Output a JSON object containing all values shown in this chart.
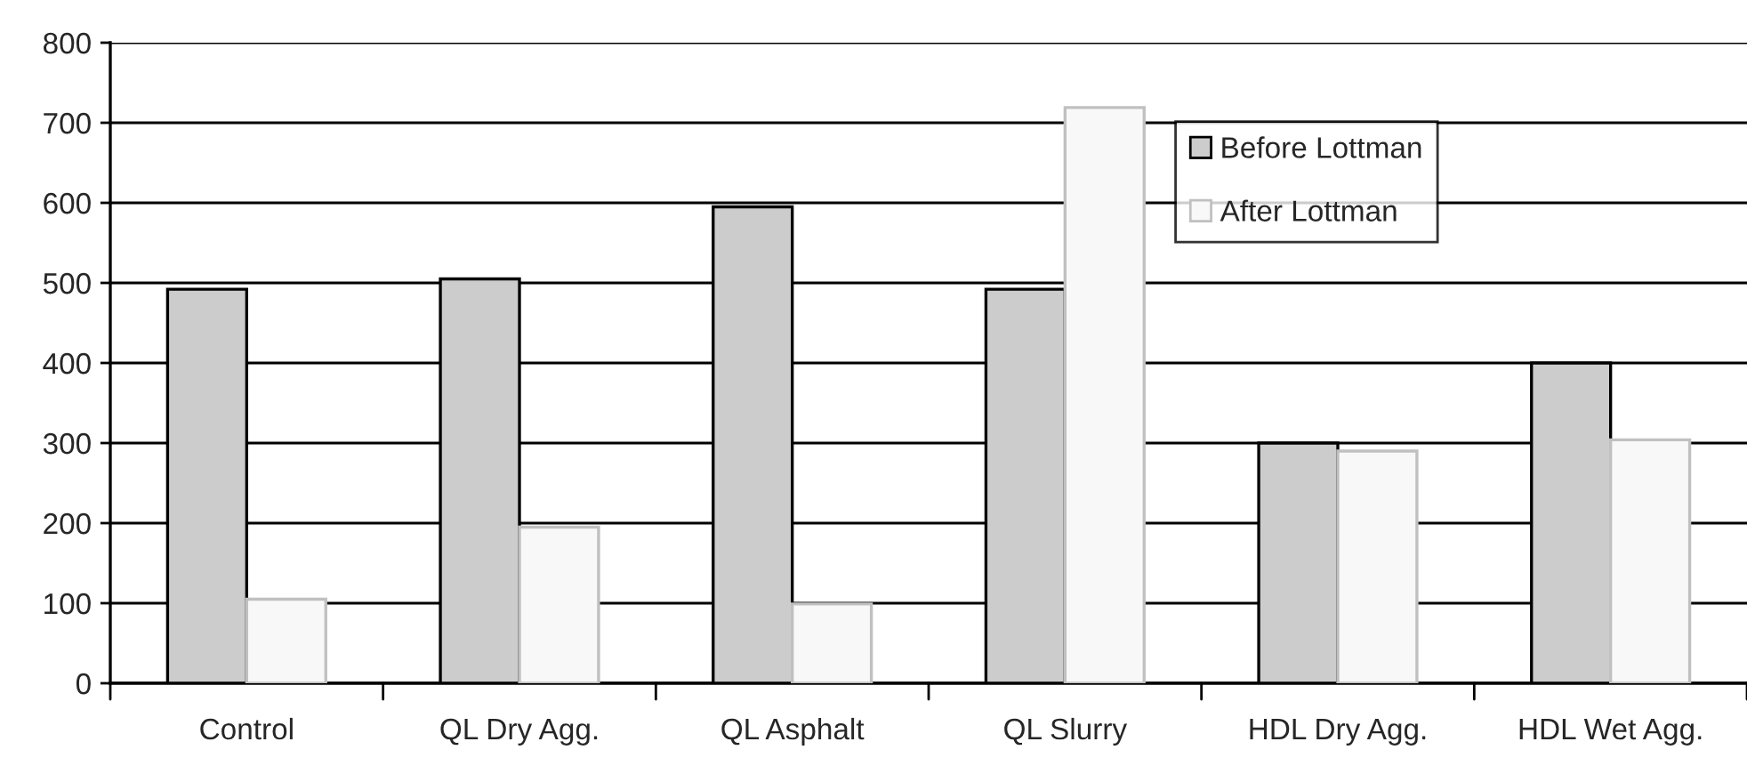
{
  "chart_data": {
    "type": "bar",
    "categories": [
      "Control",
      "QL Dry Agg.",
      "QL Asphalt",
      "QL Slurry",
      "HDL Dry Agg.",
      "HDL Wet Agg."
    ],
    "series": [
      {
        "name": "Before Lottman",
        "color": "#cccccc",
        "values": [
          492,
          505,
          595,
          492,
          300,
          400
        ]
      },
      {
        "name": "After Lottman",
        "color": "#f8f8f8",
        "values": [
          105,
          195,
          99,
          719,
          290,
          304
        ]
      }
    ],
    "ylim": [
      0,
      800
    ],
    "yticks": [
      0,
      100,
      200,
      300,
      400,
      500,
      600,
      700,
      800
    ],
    "grid": "y",
    "legend": "top right"
  }
}
